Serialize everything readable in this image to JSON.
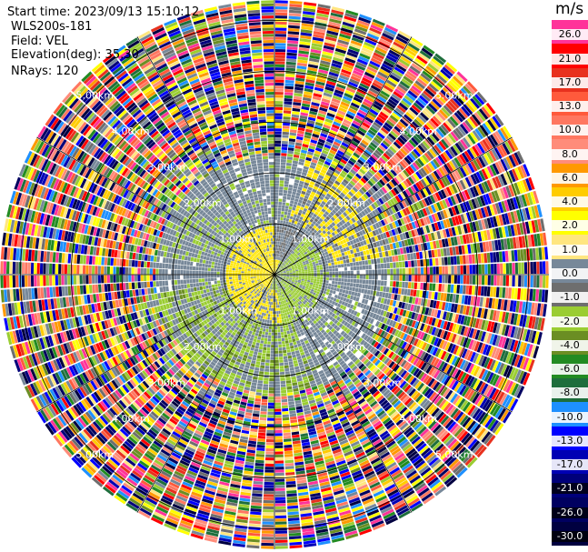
{
  "header": {
    "start_time": "Start time: 2023/09/13 15:10:12",
    "instrument": "WLS200s-181",
    "field": "Field: VEL",
    "elevation": "Elevation(deg): 35.30",
    "nrays": "NRays: 120"
  },
  "colorbar": {
    "unit": "m/s",
    "levels": [
      {
        "label": "26.0",
        "color": "#ff3399",
        "text": "light"
      },
      {
        "label": "21.0",
        "color": "#ff0000",
        "text": "light"
      },
      {
        "label": "17.0",
        "color": "#e8311e",
        "text": "light"
      },
      {
        "label": "13.0",
        "color": "#ff5a3c",
        "text": "light"
      },
      {
        "label": "10.0",
        "color": "#ff7760",
        "text": "light"
      },
      {
        "label": "8.0",
        "color": "#ff8c7a",
        "text": "light"
      },
      {
        "label": "6.0",
        "color": "#ff9900",
        "text": "light"
      },
      {
        "label": "4.0",
        "color": "#ffcc00",
        "text": "light"
      },
      {
        "label": "2.0",
        "color": "#ffff00",
        "text": "light"
      },
      {
        "label": "1.0",
        "color": "#ffe680",
        "text": "light"
      },
      {
        "label": "0.0",
        "color": "#778899",
        "text": "light"
      },
      {
        "label": "-1.0",
        "color": "#6e6e6e",
        "text": "light"
      },
      {
        "label": "-2.0",
        "color": "#9acd32",
        "text": "light"
      },
      {
        "label": "-4.0",
        "color": "#6b8e23",
        "text": "light"
      },
      {
        "label": "-6.0",
        "color": "#228b22",
        "text": "light"
      },
      {
        "label": "-8.0",
        "color": "#1e6e3c",
        "text": "light"
      },
      {
        "label": "-10.0",
        "color": "#1e90ff",
        "text": "light"
      },
      {
        "label": "-13.0",
        "color": "#0000ff",
        "text": "light"
      },
      {
        "label": "-17.0",
        "color": "#0000b4",
        "text": "light"
      },
      {
        "label": "-21.0",
        "color": "#00007a",
        "text": "dark"
      },
      {
        "label": "-26.0",
        "color": "#000060",
        "text": "dark"
      },
      {
        "label": "-30.0",
        "color": "#000040",
        "text": "dark"
      }
    ]
  },
  "range_rings": {
    "labels": [
      "1.00km",
      "2.00km",
      "3.00km",
      "4.00km",
      "5.00km"
    ]
  },
  "chart_data": {
    "type": "heatmap",
    "projection": "polar PPI",
    "field": "VEL",
    "unit": "m/s",
    "nrays": 120,
    "range_rings_km": [
      1,
      2,
      3,
      4,
      5
    ],
    "max_range_km": 5.4,
    "colorbar_ticks": [
      26.0,
      21.0,
      17.0,
      13.0,
      10.0,
      8.0,
      6.0,
      4.0,
      2.0,
      1.0,
      0.0,
      -1.0,
      -2.0,
      -4.0,
      -6.0,
      -8.0,
      -10.0,
      -13.0,
      -17.0,
      -21.0,
      -26.0,
      -30.0
    ],
    "regions": [
      {
        "range_km": [
          0,
          0.9
        ],
        "note": "near field: yellow (+1..+2 m/s) to west/north, green (-1..-2 m/s) to east/south, grey (0) elsewhere"
      },
      {
        "range_km": [
          0.9,
          2.3
        ],
        "note": "mostly grey (0..-1 m/s) with yellow patches to north-east and green patches to south/south-west"
      },
      {
        "range_km": [
          2.3,
          5.4
        ],
        "note": "noise: random velocities across the full colour scale"
      }
    ]
  }
}
